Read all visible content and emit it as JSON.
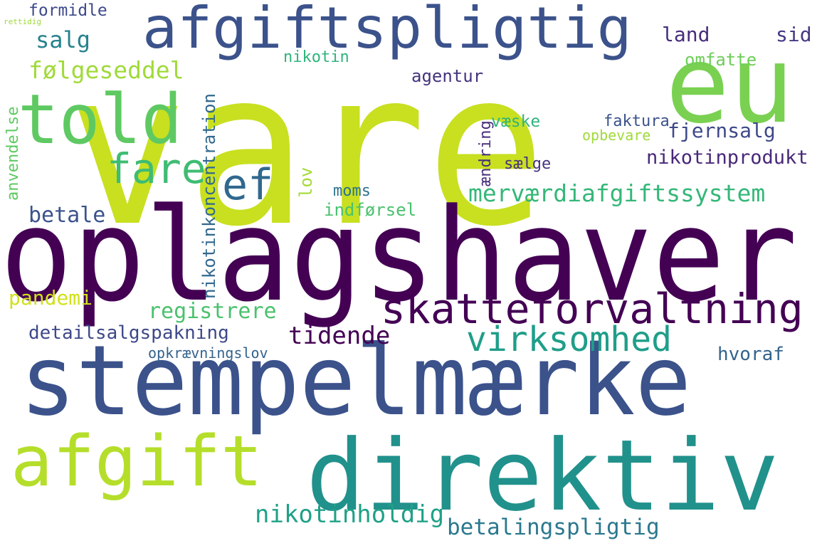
{
  "words": [
    {
      "text": "vare",
      "color": "#c8e020"
    },
    {
      "text": "oplagshaver",
      "color": "#440154"
    },
    {
      "text": "stempelmærke",
      "color": "#3b528b"
    },
    {
      "text": "direktiv",
      "color": "#21918c"
    },
    {
      "text": "afgiftspligtig",
      "color": "#3b528b"
    },
    {
      "text": "eu",
      "color": "#7ad151"
    },
    {
      "text": "told",
      "color": "#5ec962"
    },
    {
      "text": "afgift",
      "color": "#b5de2b"
    },
    {
      "text": "skatteforvaltning",
      "color": "#440154"
    },
    {
      "text": "fare",
      "color": "#3fbc73"
    },
    {
      "text": "ef",
      "color": "#31688e"
    },
    {
      "text": "virksomhed",
      "color": "#1f9e89"
    },
    {
      "text": "merværdiafgiftssystem",
      "color": "#35b779"
    },
    {
      "text": "nikotinkoncentration",
      "color": "#31688e"
    },
    {
      "text": "følgeseddel",
      "color": "#a0da39"
    },
    {
      "text": "formidle",
      "color": "#3e4989"
    },
    {
      "text": "salg",
      "color": "#26828e"
    },
    {
      "text": "nikotinprodukt",
      "color": "#482878"
    },
    {
      "text": "fjernsalg",
      "color": "#3e4989"
    },
    {
      "text": "detailsalgspakning",
      "color": "#3e4989"
    },
    {
      "text": "registrere",
      "color": "#4ac16d"
    },
    {
      "text": "tidende",
      "color": "#440154"
    },
    {
      "text": "nikotinholdig",
      "color": "#1fa187"
    },
    {
      "text": "betalingspligtig",
      "color": "#2a788e"
    },
    {
      "text": "betale",
      "color": "#3b528b"
    },
    {
      "text": "anvendelse",
      "color": "#5ec962"
    },
    {
      "text": "pandemi",
      "color": "#d0e11c"
    },
    {
      "text": "land",
      "color": "#472d7b"
    },
    {
      "text": "sid",
      "color": "#443983"
    },
    {
      "text": "omfatte",
      "color": "#6ece58"
    },
    {
      "text": "nikotin",
      "color": "#2fb47c"
    },
    {
      "text": "agentur",
      "color": "#46337e"
    },
    {
      "text": "indførsel",
      "color": "#4ac16d"
    },
    {
      "text": "moms",
      "color": "#2c728e"
    },
    {
      "text": "lov",
      "color": "#a5db36"
    },
    {
      "text": "ændring",
      "color": "#472d7b"
    },
    {
      "text": "væske",
      "color": "#2fb47c"
    },
    {
      "text": "faktura",
      "color": "#3b528b"
    },
    {
      "text": "sælge",
      "color": "#46337e"
    },
    {
      "text": "opbevare",
      "color": "#a0da39"
    },
    {
      "text": "hvoraf",
      "color": "#33638d"
    },
    {
      "text": "opkrævningslov",
      "color": "#33638d"
    },
    {
      "text": "rettidig",
      "color": "#9fda3a"
    }
  ]
}
